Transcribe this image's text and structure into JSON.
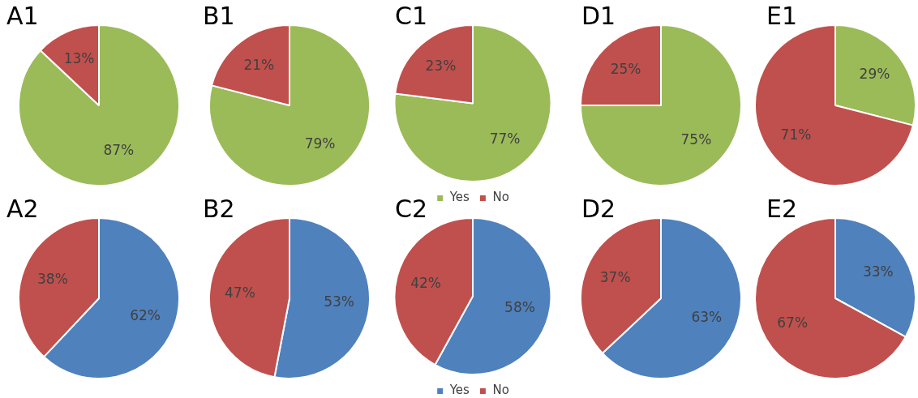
{
  "chart_data": [
    {
      "type": "pie",
      "title": "A1",
      "categories": [
        null,
        null
      ],
      "values": [
        87,
        13
      ],
      "colors": [
        "#9bbb59",
        "#c0504d"
      ],
      "value_labels": [
        "87%",
        "13%"
      ]
    },
    {
      "type": "pie",
      "title": "B1",
      "categories": [
        null,
        null
      ],
      "values": [
        79,
        21
      ],
      "colors": [
        "#9bbb59",
        "#c0504d"
      ],
      "value_labels": [
        "79%",
        "21%"
      ]
    },
    {
      "type": "pie",
      "title": "C1",
      "categories": [
        "Yes",
        "No"
      ],
      "values": [
        77,
        23
      ],
      "colors": [
        "#9bbb59",
        "#c0504d"
      ],
      "value_labels": [
        "77%",
        "23%"
      ],
      "legend": "bottom"
    },
    {
      "type": "pie",
      "title": "D1",
      "categories": [
        null,
        null
      ],
      "values": [
        75,
        25
      ],
      "colors": [
        "#9bbb59",
        "#c0504d"
      ],
      "value_labels": [
        "75%",
        "25%"
      ]
    },
    {
      "type": "pie",
      "title": "E1",
      "categories": [
        null,
        null
      ],
      "values": [
        29,
        71
      ],
      "colors": [
        "#9bbb59",
        "#c0504d"
      ],
      "value_labels": [
        "29%",
        "71%"
      ]
    },
    {
      "type": "pie",
      "title": "A2",
      "categories": [
        null,
        null
      ],
      "values": [
        62,
        38
      ],
      "colors": [
        "#4f81bd",
        "#c0504d"
      ],
      "value_labels": [
        "62%",
        "38%"
      ]
    },
    {
      "type": "pie",
      "title": "B2",
      "categories": [
        null,
        null
      ],
      "values": [
        53,
        47
      ],
      "colors": [
        "#4f81bd",
        "#c0504d"
      ],
      "value_labels": [
        "53%",
        "47%"
      ]
    },
    {
      "type": "pie",
      "title": "C2",
      "categories": [
        "Yes",
        "No"
      ],
      "values": [
        58,
        42
      ],
      "colors": [
        "#4f81bd",
        "#c0504d"
      ],
      "value_labels": [
        "58%",
        "42%"
      ],
      "legend": "bottom"
    },
    {
      "type": "pie",
      "title": "D2",
      "categories": [
        null,
        null
      ],
      "values": [
        63,
        37
      ],
      "colors": [
        "#4f81bd",
        "#c0504d"
      ],
      "value_labels": [
        "63%",
        "37%"
      ]
    },
    {
      "type": "pie",
      "title": "E2",
      "categories": [
        null,
        null
      ],
      "values": [
        33,
        67
      ],
      "colors": [
        "#4f81bd",
        "#c0504d"
      ],
      "value_labels": [
        "33%",
        "67%"
      ]
    }
  ]
}
